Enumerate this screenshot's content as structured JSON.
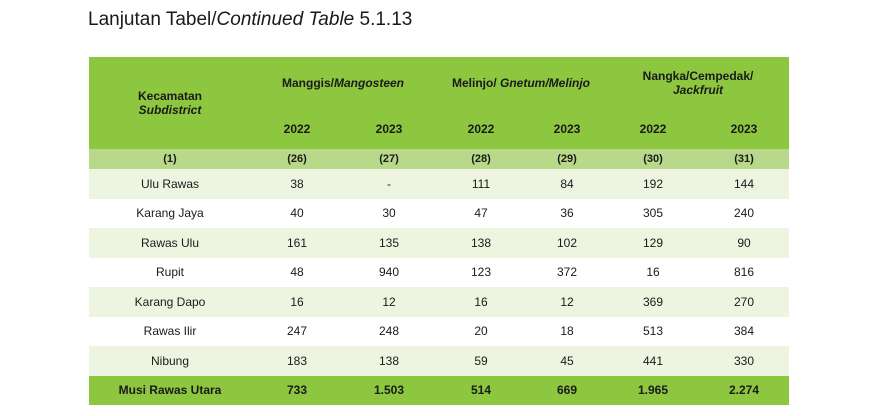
{
  "title": {
    "prefix": "Lanjutan Tabel/",
    "italic": "Continued Table",
    "suffix": " 5.1.13"
  },
  "header": {
    "subdistrict_label": "Kecamatan",
    "subdistrict_label_en": "Subdistrict",
    "groups": [
      {
        "label": "Manggis/",
        "label_en": "Mangosteen"
      },
      {
        "label": "Melinjo/",
        "label_en": "Gnetum/Melinjo"
      },
      {
        "label": "Nangka/Cempedak/",
        "label_en": "Jackfruit"
      }
    ],
    "years": [
      "2022",
      "2023",
      "2022",
      "2023",
      "2022",
      "2023"
    ]
  },
  "column_numbers": [
    "(1)",
    "(26)",
    "(27)",
    "(28)",
    "(29)",
    "(30)",
    "(31)"
  ],
  "rows": [
    {
      "name": "Ulu Rawas",
      "values": [
        "38",
        "-",
        "111",
        "84",
        "192",
        "144"
      ]
    },
    {
      "name": "Karang Jaya",
      "values": [
        "40",
        "30",
        "47",
        "36",
        "305",
        "240"
      ]
    },
    {
      "name": "Rawas Ulu",
      "values": [
        "161",
        "135",
        "138",
        "102",
        "129",
        "90"
      ]
    },
    {
      "name": "Rupit",
      "values": [
        "48",
        "940",
        "123",
        "372",
        "16",
        "816"
      ]
    },
    {
      "name": "Karang Dapo",
      "values": [
        "16",
        "12",
        "16",
        "12",
        "369",
        "270"
      ]
    },
    {
      "name": "Rawas Ilir",
      "values": [
        "247",
        "248",
        "20",
        "18",
        "513",
        "384"
      ]
    },
    {
      "name": "Nibung",
      "values": [
        "183",
        "138",
        "59",
        "45",
        "441",
        "330"
      ]
    }
  ],
  "total": {
    "name": "Musi Rawas Utara",
    "values": [
      "733",
      "1.503",
      "514",
      "669",
      "1.965",
      "2.274"
    ]
  },
  "colors": {
    "header_green": "#8dc63f",
    "number_row_green": "#b8d98a",
    "stripe_light": "#edf5e0"
  }
}
